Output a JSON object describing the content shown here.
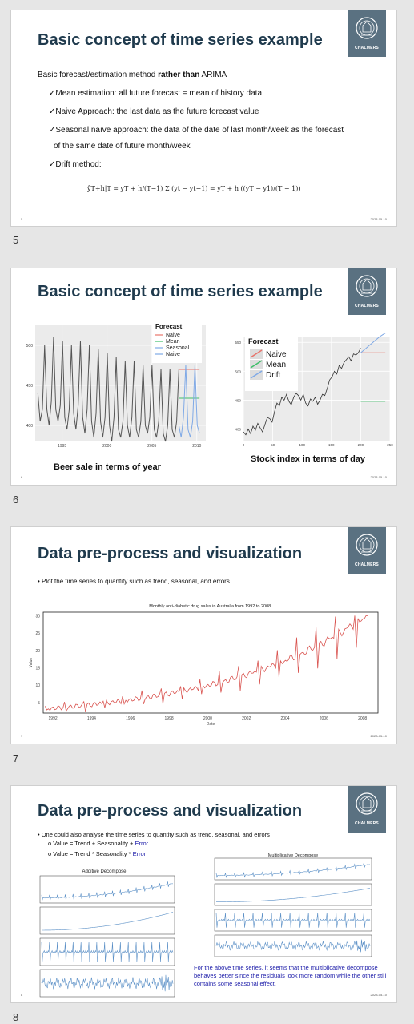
{
  "footer_date": "2023-05-10",
  "slides": [
    {
      "number": "5",
      "title": "Basic concept of time series example",
      "intro_prefix": "Basic forecast/estimation method ",
      "intro_bold": "rather than",
      "intro_suffix": " ARIMA",
      "bullets": [
        "✓Mean estimation: all future forecast = mean of history data",
        "✓Naive Approach: the last data as the future forecast value",
        "✓Seasonal naïve approach: the data of the date of last month/week as the forecast",
        "of the same date of future month/week",
        "✓Drift method:"
      ],
      "formula": "ŷT+h|T = yT + h/(T−1) Σ (yt − yt−1) = yT + h ((yT − y1)/(T − 1))",
      "slide_index": "5"
    },
    {
      "number": "6",
      "title": "Basic concept of time series example",
      "slide_index": "6",
      "left_caption": "Beer sale in terms of year",
      "right_caption": "Stock index in terms of day"
    },
    {
      "number": "7",
      "title": "Data pre-process and visualization",
      "slide_index": "7",
      "bullet": "• Plot the time series to quantify such as trend, seasonal, and errors"
    },
    {
      "number": "8",
      "title": "Data pre-process and visualization",
      "slide_index": "8",
      "bullet": "• One could also analyse the time series to quantity such as trend, seasonal, and errors",
      "sub1_prefix": "o  Value = Trend + Seasonality + ",
      "sub1_em": "Error",
      "sub2_prefix": "o  Value = Trend * Seasonality * ",
      "sub2_em": "Error",
      "note": "For the above time series, it seems that the multiplicative decompose behaves better since the residuals look more random while the other still contains some seasonal effect.",
      "additive_title": "Additive Decompose",
      "multiplicative_title": "Multiplicative Decompose"
    }
  ],
  "logo_text": "CHALMERS",
  "chart_data": [
    {
      "type": "line",
      "chart": "beer",
      "legend_title": "Forecast",
      "legend": [
        "Naive",
        "Mean",
        "Seasonal",
        "Naive"
      ],
      "x_ticks": [
        "1995",
        "2000",
        "2005",
        "2010"
      ],
      "y_ticks": [
        "400",
        "450",
        "500"
      ],
      "xlim": [
        1992,
        2011
      ],
      "ylim": [
        380,
        525
      ],
      "series": [
        {
          "values": [
            440,
            405,
            420,
            500,
            420,
            400,
            430,
            510,
            420,
            405,
            425,
            505,
            410,
            395,
            420,
            500,
            415,
            395,
            425,
            505,
            410,
            390,
            420,
            500,
            405,
            385,
            415,
            495,
            405,
            385,
            410,
            490,
            400,
            380,
            410,
            485,
            395,
            385,
            405,
            480,
            400,
            385,
            410,
            480,
            395,
            385,
            405,
            475,
            400,
            390,
            410,
            475,
            395,
            385,
            405,
            470,
            390,
            380,
            400,
            470,
            395,
            385,
            405,
            470
          ]
        },
        {
          "values": [
            470,
            470,
            470,
            470,
            470,
            470,
            470,
            470,
            470,
            470
          ]
        },
        {
          "values": [
            434,
            434,
            434,
            434,
            434,
            434,
            434,
            434,
            434,
            434
          ]
        },
        {
          "values": [
            400,
            385,
            410,
            475,
            395,
            385,
            405,
            475,
            400,
            390
          ]
        }
      ],
      "colors": [
        "#555555",
        "#e8746b",
        "#3fbf6a",
        "#7fa9e6"
      ]
    },
    {
      "type": "line",
      "chart": "stock",
      "legend_title": "Forecast",
      "legend": [
        "Naive",
        "Mean",
        "Drift"
      ],
      "x_ticks": [
        "0",
        "50",
        "100",
        "150",
        "200",
        "250"
      ],
      "y_ticks": [
        "400",
        "450",
        "500",
        "550"
      ],
      "xlim": [
        0,
        250
      ],
      "ylim": [
        380,
        560
      ],
      "series": [
        {
          "values": [
            395,
            390,
            400,
            392,
            405,
            398,
            410,
            402,
            395,
            408,
            420,
            418,
            412,
            430,
            445,
            440,
            455,
            450,
            460,
            448,
            442,
            455,
            462,
            458,
            450,
            460,
            445,
            440,
            452,
            448,
            455,
            443,
            450,
            460,
            458,
            470,
            485,
            490,
            500,
            495,
            510,
            505,
            515,
            520,
            525,
            518,
            530,
            528,
            532,
            540
          ]
        },
        {
          "values": [
            532,
            532,
            532,
            532,
            532,
            532,
            532,
            532,
            532,
            532
          ]
        },
        {
          "values": [
            448,
            448,
            448,
            448,
            448,
            448,
            448,
            448,
            448,
            448
          ]
        },
        {
          "values": [
            532,
            536,
            540,
            544,
            548,
            552,
            556,
            560,
            563,
            566
          ]
        }
      ],
      "colors": [
        "#333333",
        "#e8746b",
        "#3fbf6a",
        "#7fa9e6"
      ]
    },
    {
      "type": "line",
      "chart": "antidiabetic",
      "title": "Monthly anti-diabetic drug sales in Australia from 1992 to 2008.",
      "xlabel": "Date",
      "ylabel": "Value",
      "x_ticks": [
        "1992",
        "1994",
        "1996",
        "1998",
        "2000",
        "2002",
        "2004",
        "2006",
        "2008"
      ],
      "y_ticks": [
        "5",
        "10",
        "15",
        "20",
        "25",
        "30"
      ],
      "xlim": [
        1991.5,
        2008.8
      ],
      "ylim": [
        2,
        31
      ],
      "color": "#d9534f"
    }
  ]
}
